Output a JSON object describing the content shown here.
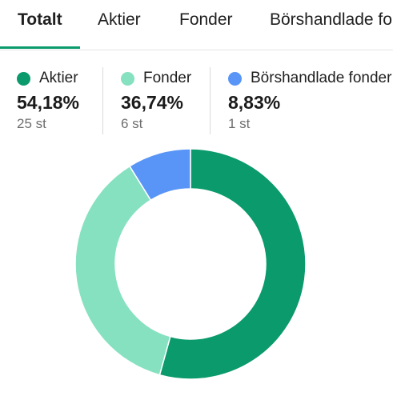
{
  "tabs": [
    {
      "label": "Totalt",
      "active": true
    },
    {
      "label": "Aktier",
      "active": false
    },
    {
      "label": "Fonder",
      "active": false
    },
    {
      "label": "Börshandlade fonder",
      "active": false
    }
  ],
  "accent_color": "#0a9a6b",
  "legend": [
    {
      "name": "Aktier",
      "percent": "54,18%",
      "count": "25 st",
      "color": "#0a9a6b"
    },
    {
      "name": "Fonder",
      "percent": "36,74%",
      "count": "6 st",
      "color": "#86e1c0"
    },
    {
      "name": "Börshandlade fonder",
      "percent": "8,83%",
      "count": "1 st",
      "color": "#5995f7"
    }
  ],
  "chart_data": {
    "type": "pie",
    "donut": true,
    "categories": [
      "Aktier",
      "Fonder",
      "Börshandlade fonder"
    ],
    "values": [
      54.18,
      36.74,
      8.83
    ],
    "colors": [
      "#0a9a6b",
      "#86e1c0",
      "#5995f7"
    ]
  }
}
